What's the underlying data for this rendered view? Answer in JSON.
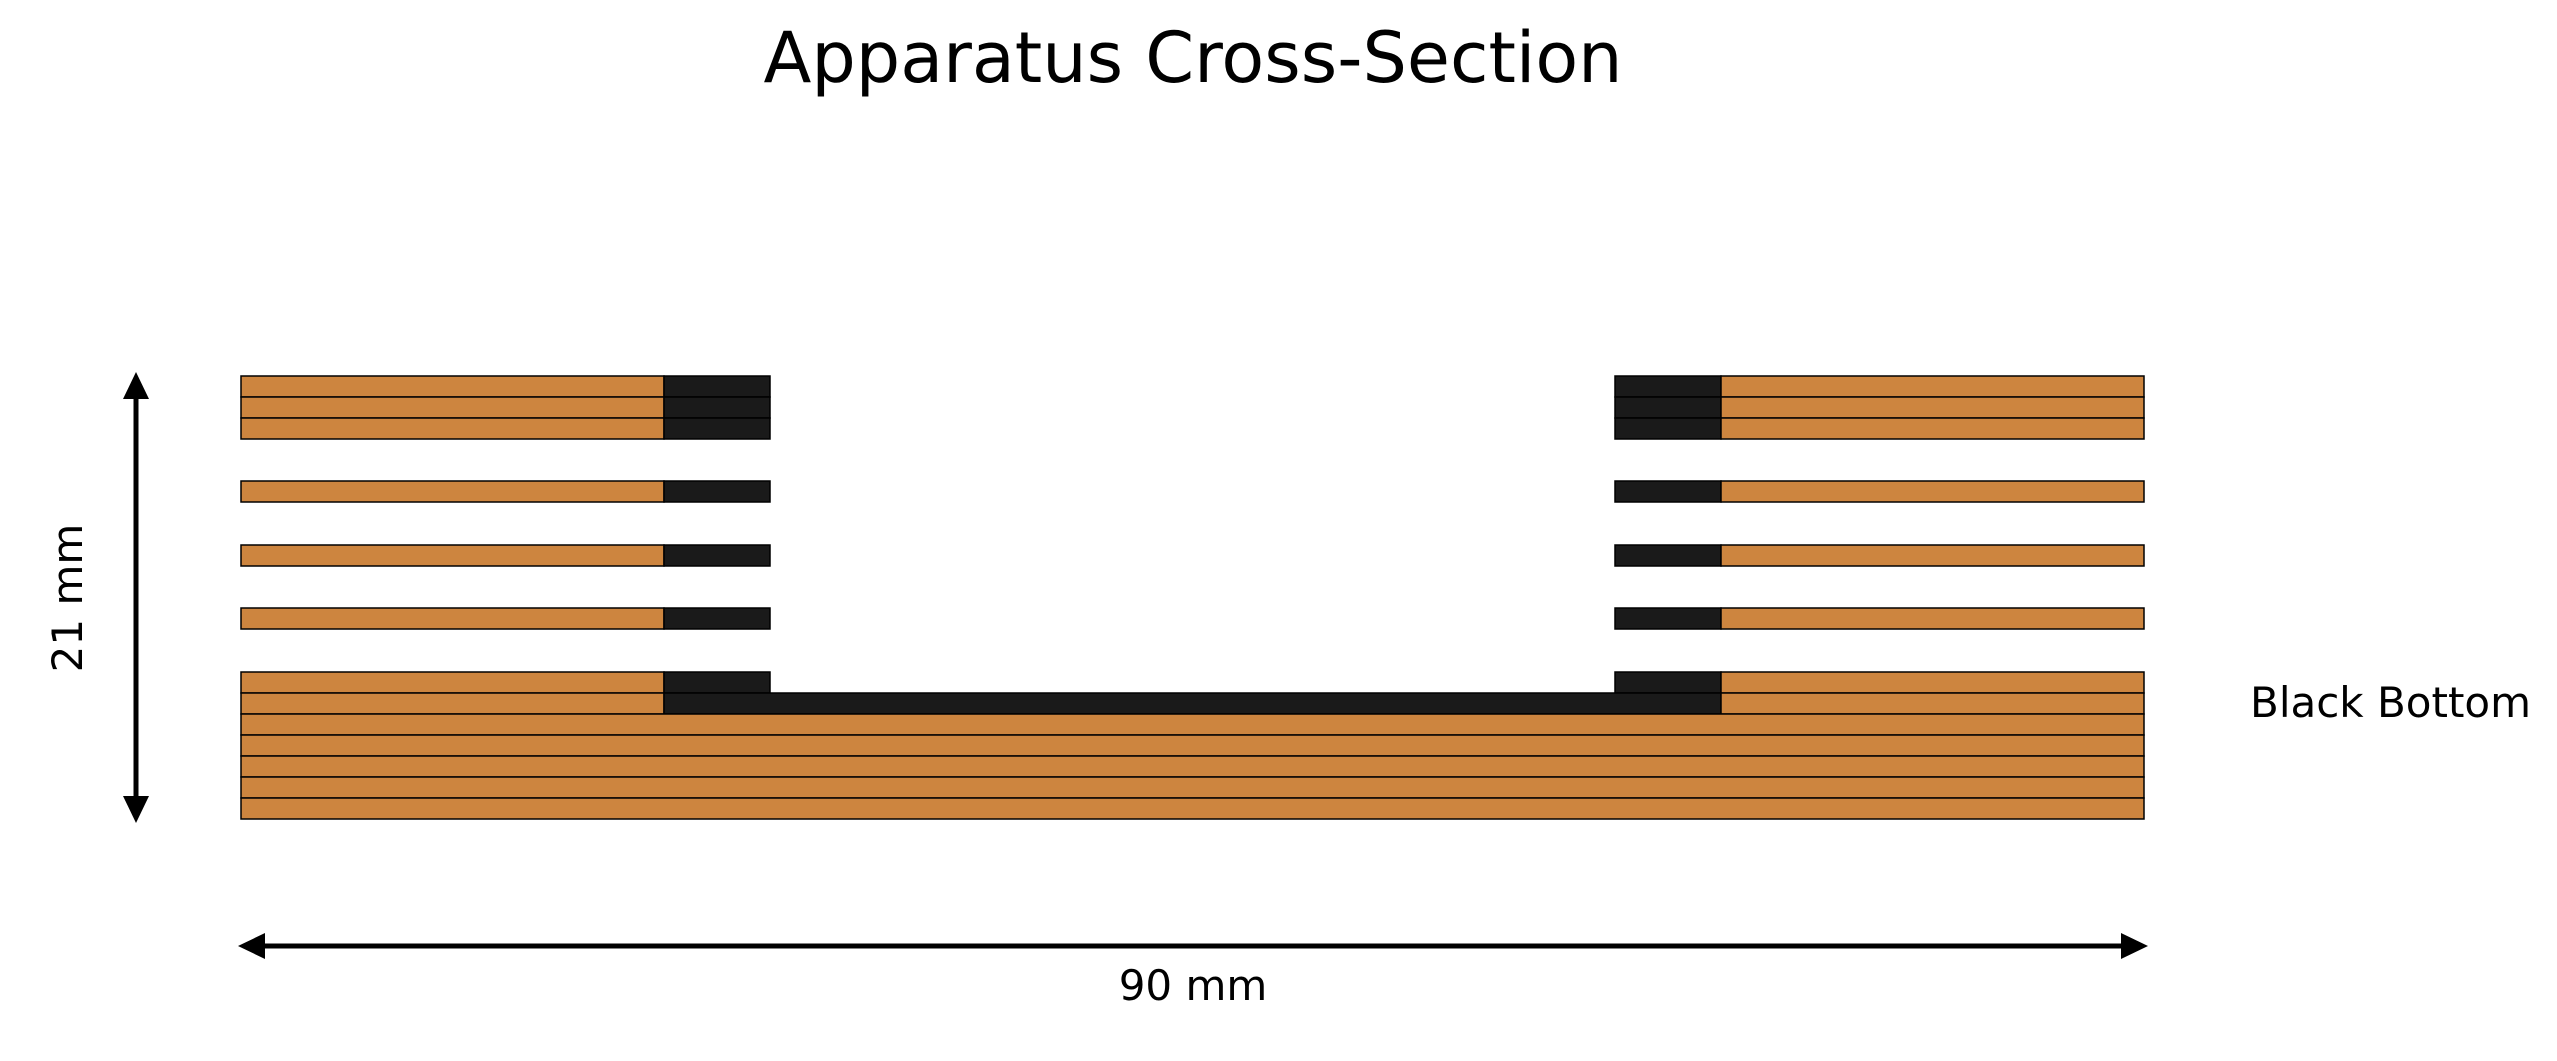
{
  "title": "Apparatus Cross-Section",
  "labels": {
    "height": "21 mm",
    "width": "90 mm",
    "layer_note": "Black Bottom"
  },
  "colors": {
    "background": "#ffffff",
    "copper_layer": "#CD853F",
    "black_layer": "#1A1A1A",
    "outline": "#000000"
  }
}
